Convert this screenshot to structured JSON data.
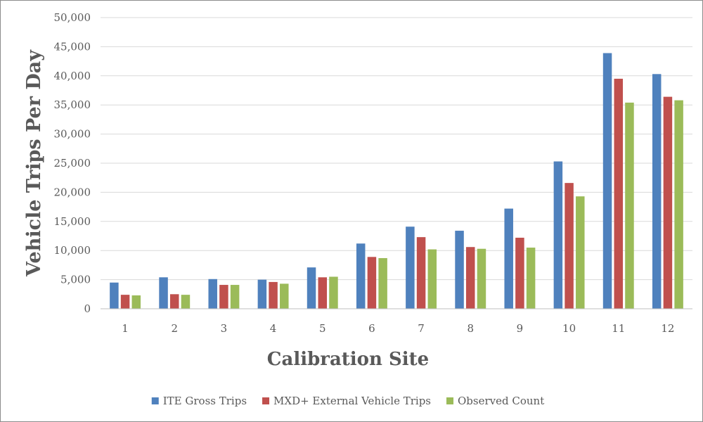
{
  "chart_data": {
    "type": "bar",
    "title": "",
    "xlabel": "Calibration Site",
    "ylabel": "Vehicle Trips Per Day",
    "ylim": [
      0,
      50000
    ],
    "yticks": [
      "0",
      "5,000",
      "10,000",
      "15,000",
      "20,000",
      "25,000",
      "30,000",
      "35,000",
      "40,000",
      "45,000",
      "50,000"
    ],
    "ytick_values": [
      0,
      5000,
      10000,
      15000,
      20000,
      25000,
      30000,
      35000,
      40000,
      45000,
      50000
    ],
    "categories": [
      "1",
      "2",
      "3",
      "4",
      "5",
      "6",
      "7",
      "8",
      "9",
      "10",
      "11",
      "12"
    ],
    "grid": true,
    "legend_position": "bottom",
    "series": [
      {
        "name": "ITE Gross Trips",
        "color": "#4f81bd",
        "values": [
          4500,
          5400,
          5100,
          5000,
          7100,
          11200,
          14100,
          13400,
          17200,
          25300,
          43900,
          40300
        ]
      },
      {
        "name": "MXD+ External Vehicle Trips",
        "color": "#c0504d",
        "values": [
          2400,
          2500,
          4100,
          4600,
          5400,
          8900,
          12300,
          10600,
          12200,
          21600,
          39500,
          36400
        ]
      },
      {
        "name": "Observed Count",
        "color": "#9bbb59",
        "values": [
          2300,
          2400,
          4100,
          4300,
          5500,
          8700,
          10200,
          10300,
          10500,
          19300,
          35400,
          35800
        ]
      }
    ]
  }
}
